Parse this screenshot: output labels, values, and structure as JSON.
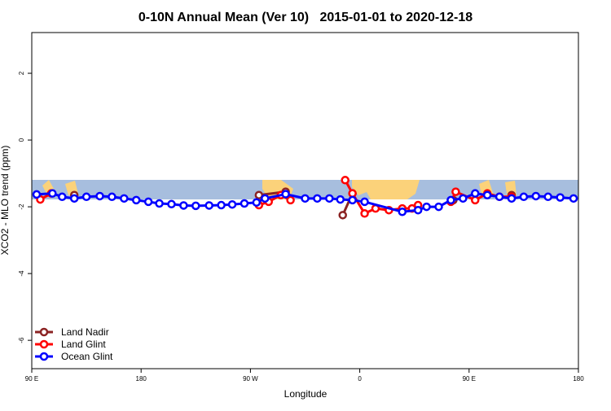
{
  "chart_data": {
    "type": "line",
    "title": "0-10N Annual Mean (Ver 10)   2015-01-01 to 2020-12-18",
    "xlabel": "Longitude",
    "ylabel": "XCO2 - MLO trend (ppm)",
    "xlim": [
      90,
      540
    ],
    "ylim": [
      -6.85,
      3.22
    ],
    "xticks": [
      {
        "value": 90,
        "label": "90 E"
      },
      180,
      {
        "value": 270,
        "label": "90 W"
      },
      {
        "value": 360,
        "label": "0"
      },
      {
        "value": 450,
        "label": "90 E"
      },
      {
        "value": 540,
        "label": "180"
      }
    ],
    "yticks": [
      -6,
      -4,
      -2,
      0,
      2
    ],
    "legend": "bottom-left",
    "series": [
      {
        "name": "Land Nadir",
        "color": "#8b2323",
        "x": [
          125,
          null,
          277,
          299,
          null,
          346,
          354,
          null,
          437,
          null,
          485
        ],
        "values": [
          -1.65,
          null,
          -1.65,
          -1.55,
          null,
          -2.25,
          -1.6,
          null,
          -1.8,
          null,
          -1.65
        ]
      },
      {
        "name": "Land Glint",
        "color": "#ff0000",
        "x": [
          97,
          106,
          null,
          277,
          285,
          295,
          303,
          null,
          348,
          354,
          364,
          373,
          384,
          395,
          403,
          408,
          null,
          435,
          439,
          455,
          465,
          475,
          485
        ],
        "values": [
          -1.78,
          -1.6,
          null,
          -1.95,
          -1.85,
          -1.65,
          -1.8,
          null,
          -1.2,
          -1.6,
          -2.2,
          -2.05,
          -2.1,
          -2.05,
          -2.05,
          -1.95,
          null,
          -1.85,
          -1.55,
          -1.8,
          -1.6,
          -1.7,
          -1.7
        ]
      },
      {
        "name": "Ocean Glint",
        "color": "#0000ff",
        "x": [
          94,
          107,
          115,
          125,
          135,
          146,
          156,
          166,
          176,
          186,
          195,
          205,
          215,
          225,
          236,
          246,
          255,
          265,
          275,
          282,
          299,
          315,
          325,
          335,
          344,
          354,
          364,
          395,
          408,
          415,
          425,
          435,
          445,
          455,
          465,
          475,
          485,
          495,
          505,
          515,
          525,
          536
        ],
        "values": [
          -1.63,
          -1.6,
          -1.7,
          -1.75,
          -1.7,
          -1.68,
          -1.7,
          -1.75,
          -1.8,
          -1.85,
          -1.9,
          -1.92,
          -1.96,
          -1.97,
          -1.96,
          -1.95,
          -1.93,
          -1.9,
          -1.87,
          -1.75,
          -1.62,
          -1.75,
          -1.75,
          -1.75,
          -1.78,
          -1.8,
          -1.85,
          -2.15,
          -2.1,
          -2.0,
          -2.0,
          -1.8,
          -1.75,
          -1.6,
          -1.65,
          -1.7,
          -1.75,
          -1.7,
          -1.68,
          -1.7,
          -1.72,
          -1.75
        ]
      }
    ]
  }
}
